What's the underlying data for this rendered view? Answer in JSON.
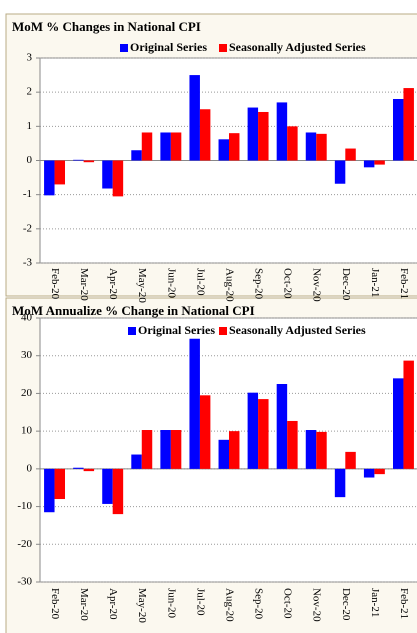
{
  "chart_data": [
    {
      "type": "bar",
      "title": "MoM % Changes in National CPI",
      "categories": [
        "Feb-20",
        "Mar-20",
        "Apr-20",
        "May-20",
        "Jun-20",
        "Jul-20",
        "Aug-20",
        "Sep-20",
        "Oct-20",
        "Nov-20",
        "Dec-20",
        "Jan-21",
        "Feb-21"
      ],
      "series": [
        {
          "name": "Original Series",
          "color": "#0000ff",
          "values": [
            -1.02,
            0.02,
            -0.82,
            0.3,
            0.82,
            2.5,
            0.62,
            1.55,
            1.7,
            0.82,
            -0.68,
            -0.2,
            1.8
          ]
        },
        {
          "name": "Seasonally Adjusted Series",
          "color": "#ff0000",
          "values": [
            -0.7,
            -0.05,
            -1.05,
            0.82,
            0.82,
            1.5,
            0.8,
            1.42,
            1.0,
            0.78,
            0.35,
            -0.12,
            2.12
          ]
        }
      ],
      "ylim": [
        -3,
        3
      ],
      "yticks": [
        -3,
        -2,
        -1,
        0,
        1,
        2,
        3
      ],
      "grid": true,
      "legend": "top-right"
    },
    {
      "type": "bar",
      "title": "MoM Annualize % Change in National CPI",
      "categories": [
        "Feb-20",
        "Mar-20",
        "Apr-20",
        "May-20",
        "Jun-20",
        "Jul-20",
        "Aug-20",
        "Sep-20",
        "Oct-20",
        "Nov-20",
        "Dec-20",
        "Jan-21",
        "Feb-21"
      ],
      "series": [
        {
          "name": "Original Series",
          "color": "#0000ff",
          "values": [
            -11.5,
            0.3,
            -9.3,
            3.8,
            10.3,
            34.5,
            7.7,
            20.2,
            22.5,
            10.3,
            -7.5,
            -2.3,
            24
          ]
        },
        {
          "name": "Seasonally Adjusted Series",
          "color": "#ff0000",
          "values": [
            -8,
            -0.6,
            -12,
            10.3,
            10.3,
            19.5,
            10,
            18.5,
            12.7,
            9.8,
            4.5,
            -1.4,
            28.7
          ]
        }
      ],
      "ylim": [
        -30,
        40
      ],
      "yticks": [
        -30,
        -20,
        -10,
        0,
        10,
        20,
        30,
        40
      ],
      "grid": true,
      "legend": "top-right"
    }
  ]
}
